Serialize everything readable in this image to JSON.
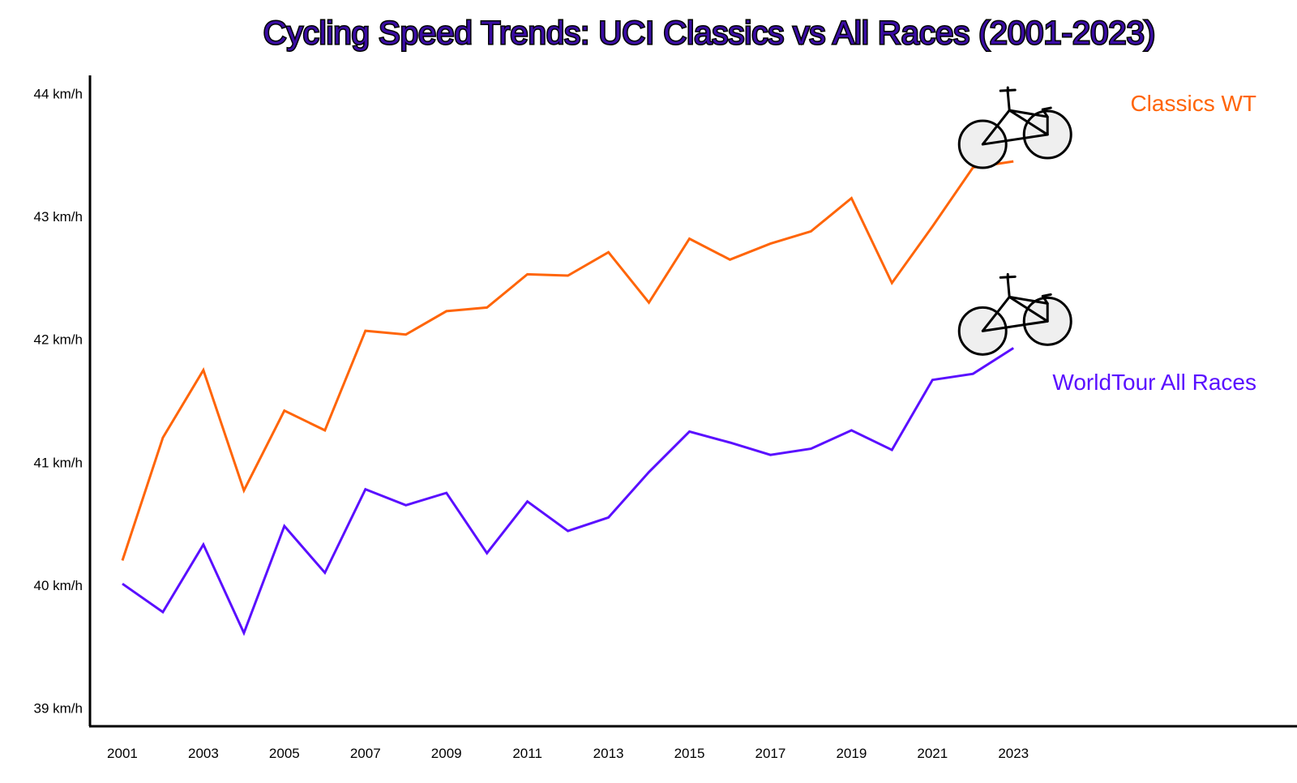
{
  "chart_data": {
    "type": "line",
    "title": "Cycling Speed Trends: UCI Classics vs All Races (2001-2023)",
    "title_color": "#3a0ca3",
    "title_outline_color": "#000000",
    "x": [
      2001,
      2002,
      2003,
      2004,
      2005,
      2006,
      2007,
      2008,
      2009,
      2010,
      2011,
      2012,
      2013,
      2014,
      2015,
      2016,
      2017,
      2018,
      2019,
      2020,
      2021,
      2022,
      2023
    ],
    "x_tick_labels": [
      "2001",
      "2003",
      "2005",
      "2007",
      "2009",
      "2011",
      "2013",
      "2015",
      "2017",
      "2019",
      "2021",
      "2023"
    ],
    "xlim": [
      2000.2,
      2030
    ],
    "y_tick_labels": [
      "39 km/h",
      "40 km/h",
      "41 km/h",
      "42 km/h",
      "43 km/h",
      "44 km/h"
    ],
    "y_tick_values": [
      39,
      40,
      41,
      42,
      43,
      44
    ],
    "ylim": [
      38.85,
      44.15
    ],
    "grid": false,
    "series": [
      {
        "name": "Classics WT",
        "color": "#ff6508",
        "values": [
          40.2,
          41.2,
          41.75,
          40.77,
          41.42,
          41.26,
          42.07,
          42.04,
          42.23,
          42.26,
          42.53,
          42.52,
          42.71,
          42.3,
          42.82,
          42.65,
          42.78,
          42.88,
          43.15,
          42.46,
          42.92,
          43.4,
          43.45
        ],
        "marker_icon": "bicycle-icon"
      },
      {
        "name": "WorldTour All Races",
        "color": "#5a0fff",
        "values": [
          40.01,
          39.78,
          40.33,
          39.61,
          40.48,
          40.1,
          40.78,
          40.65,
          40.75,
          40.26,
          40.68,
          40.44,
          40.55,
          40.92,
          41.25,
          41.16,
          41.06,
          41.11,
          41.26,
          41.1,
          41.67,
          41.72,
          41.93
        ],
        "marker_icon": "bicycle-icon"
      }
    ]
  }
}
